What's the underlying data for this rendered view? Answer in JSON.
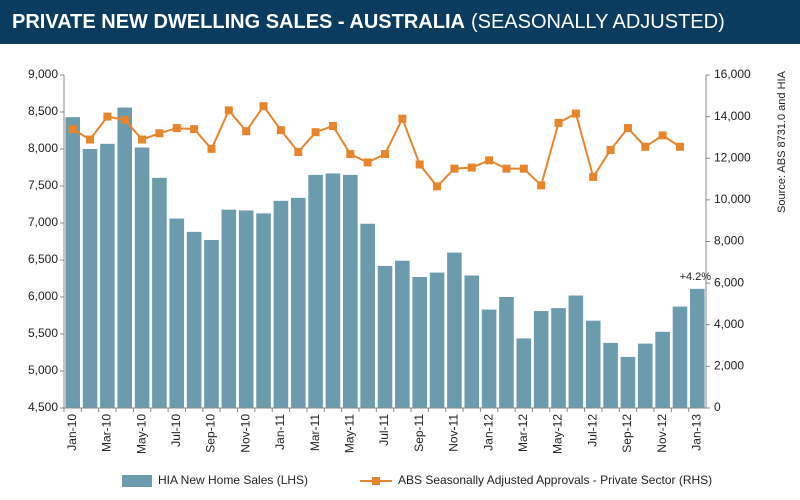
{
  "chart_data": {
    "type": "bar_line",
    "title": "PRIVATE NEW DWELLING SALES -  AUSTRALIA",
    "subtitle": "(SEASONALLY ADJUSTED)",
    "source": "Source: ABS 8731.0 and HIA",
    "annotation": "+4.2%",
    "categories": [
      "Jan-10",
      null,
      "Mar-10",
      null,
      "May-10",
      null,
      "Jul-10",
      null,
      "Sep-10",
      null,
      "Nov-10",
      null,
      "Jan-11",
      null,
      "Mar-11",
      null,
      "May-11",
      null,
      "Jul-11",
      null,
      "Sep-11",
      null,
      "Nov-11",
      null,
      "Jan-12",
      null,
      "Mar-12",
      null,
      "May-12",
      null,
      "Jul-12",
      null,
      "Sep-12",
      null,
      "Nov-12",
      null,
      "Jan-13"
    ],
    "series": [
      {
        "name": "HIA New Home Sales (LHS)",
        "color": "#6b9bac",
        "axis": "y",
        "values": [
          8430,
          8000,
          8070,
          8560,
          8020,
          7610,
          7060,
          6880,
          6770,
          7180,
          7170,
          7130,
          7300,
          7340,
          7650,
          7670,
          7650,
          6990,
          6420,
          6490,
          6270,
          6330,
          6600,
          6290,
          5830,
          6000,
          5440,
          5810,
          5850,
          6020,
          5680,
          5380,
          5190,
          5370,
          5530,
          5870,
          6110
        ]
      },
      {
        "name": "ABS Seasonally Adjusted Approvals - Private Sector (RHS)",
        "color": "#e8842c",
        "axis": "y2",
        "values": [
          13400,
          12900,
          14000,
          13850,
          12900,
          13200,
          13450,
          13400,
          12450,
          14300,
          13300,
          14500,
          13350,
          12300,
          13250,
          13550,
          12200,
          11800,
          12200,
          13900,
          11700,
          10650,
          11500,
          11550,
          11900,
          11500,
          11500,
          10700,
          13700,
          14150,
          11100,
          12400,
          13450,
          12550,
          13100,
          12550,
          null
        ]
      }
    ],
    "ylim": [
      4500,
      9000
    ],
    "yticks": [
      {
        "value": 4500,
        "label": "4,500"
      },
      {
        "value": 5000,
        "label": "5,000"
      },
      {
        "value": 5500,
        "label": "5,500"
      },
      {
        "value": 6000,
        "label": "6,000"
      },
      {
        "value": 6500,
        "label": "6,500"
      },
      {
        "value": 7000,
        "label": "7,000"
      },
      {
        "value": 7500,
        "label": "7,500"
      },
      {
        "value": 8000,
        "label": "8,000"
      },
      {
        "value": 8500,
        "label": "8,500"
      },
      {
        "value": 9000,
        "label": "9,000"
      }
    ],
    "y2lim": [
      0,
      16000
    ],
    "y2ticks": [
      0,
      {
        "value": 2000,
        "label": "2,000"
      },
      {
        "value": 4000,
        "label": "4,000"
      },
      {
        "value": 6000,
        "label": "6,000"
      },
      {
        "value": 8000,
        "label": "8,000"
      },
      {
        "value": 10000,
        "label": "10,000"
      },
      {
        "value": 12000,
        "label": "12,000"
      },
      {
        "value": 14000,
        "label": "14,000"
      },
      {
        "value": 16000,
        "label": "16,000"
      }
    ],
    "legend": "bottom"
  }
}
